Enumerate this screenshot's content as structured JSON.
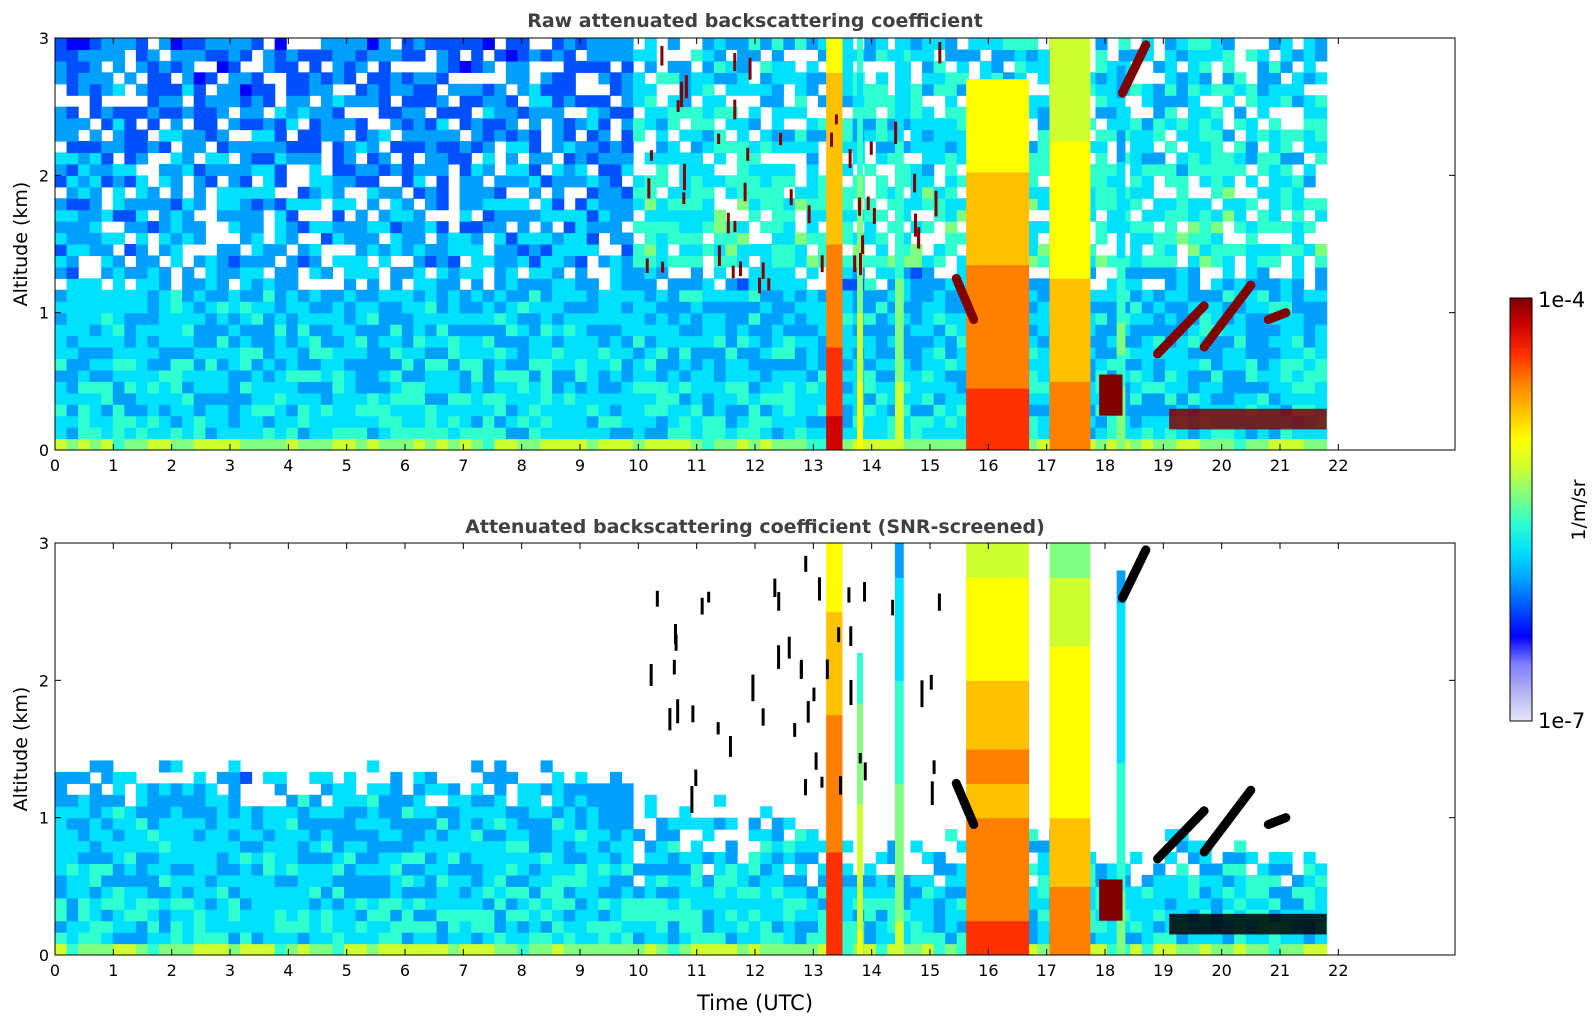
{
  "chart_data": [
    {
      "type": "heatmap",
      "title": "Raw attenuated backscattering coefficient",
      "xlabel": "",
      "ylabel": "Altitude (km)",
      "xlim": [
        0,
        24
      ],
      "ylim": [
        0,
        3
      ],
      "x_ticks": [
        "0",
        "1",
        "2",
        "3",
        "4",
        "5",
        "6",
        "7",
        "8",
        "9",
        "10",
        "11",
        "12",
        "13",
        "14",
        "15",
        "16",
        "17",
        "18",
        "19",
        "20",
        "21",
        "22"
      ],
      "y_ticks": [
        "0",
        "1",
        "2",
        "3"
      ],
      "data_end_hour": 21.8,
      "screened": false,
      "features": [
        {
          "kind": "column",
          "x0": 15.62,
          "x1": 16.7,
          "top": 2.7,
          "level": 0.85
        },
        {
          "kind": "column",
          "x0": 17.05,
          "x1": 17.75,
          "top": 3.0,
          "level": 0.8
        },
        {
          "kind": "column",
          "x0": 13.22,
          "x1": 13.5,
          "top": 3.0,
          "level": 0.9
        },
        {
          "kind": "column",
          "x0": 13.75,
          "x1": 13.85,
          "top": 3.0,
          "level": 0.65
        },
        {
          "kind": "column",
          "x0": 14.4,
          "x1": 14.55,
          "top": 3.0,
          "level": 0.6
        },
        {
          "kind": "column",
          "x0": 18.2,
          "x1": 18.35,
          "top": 2.8,
          "level": 0.55
        },
        {
          "kind": "patch",
          "x": 17.9,
          "y": 0.25,
          "w": 0.4,
          "h": 0.3,
          "level": 1.0
        },
        {
          "kind": "band",
          "x0": 19.1,
          "x1": 21.8,
          "y": 0.15,
          "h": 0.15,
          "level": 1.0
        },
        {
          "kind": "streak",
          "x0": 18.9,
          "y0": 0.7,
          "x1": 19.7,
          "y1": 1.05,
          "level": 1.0
        },
        {
          "kind": "streak",
          "x0": 19.7,
          "y0": 0.75,
          "x1": 20.5,
          "y1": 1.2,
          "level": 1.0
        },
        {
          "kind": "streak",
          "x0": 20.8,
          "y0": 0.95,
          "x1": 21.1,
          "y1": 1.0,
          "level": 1.0
        },
        {
          "kind": "streak",
          "x0": 18.3,
          "y0": 2.6,
          "x1": 18.7,
          "y1": 2.95,
          "level": 1.0
        },
        {
          "kind": "streak",
          "x0": 15.45,
          "y0": 1.25,
          "x1": 15.75,
          "y1": 0.95,
          "level": 1.0
        },
        {
          "kind": "dots",
          "x0": 10.0,
          "x1": 15.2,
          "y0": 1.2,
          "y1": 3.0,
          "count": 45,
          "level": 1.0
        }
      ]
    },
    {
      "type": "heatmap",
      "title": "Attenuated backscattering coefficient (SNR-screened)",
      "xlabel": "Time (UTC)",
      "ylabel": "Altitude (km)",
      "xlim": [
        0,
        24
      ],
      "ylim": [
        0,
        3
      ],
      "x_ticks": [
        "0",
        "1",
        "2",
        "3",
        "4",
        "5",
        "6",
        "7",
        "8",
        "9",
        "10",
        "11",
        "12",
        "13",
        "14",
        "15",
        "16",
        "17",
        "18",
        "19",
        "20",
        "21",
        "22"
      ],
      "y_ticks": [
        "0",
        "1",
        "2",
        "3"
      ],
      "data_end_hour": 21.8,
      "screened": true,
      "features": [
        {
          "kind": "column",
          "x0": 15.62,
          "x1": 16.7,
          "top": 3.0,
          "level": 0.85
        },
        {
          "kind": "column",
          "x0": 17.05,
          "x1": 17.75,
          "top": 3.0,
          "level": 0.8
        },
        {
          "kind": "column",
          "x0": 13.22,
          "x1": 13.5,
          "top": 3.0,
          "level": 0.9
        },
        {
          "kind": "column",
          "x0": 13.75,
          "x1": 13.85,
          "top": 2.2,
          "level": 0.65
        },
        {
          "kind": "column",
          "x0": 14.4,
          "x1": 14.55,
          "top": 3.0,
          "level": 0.6
        },
        {
          "kind": "column",
          "x0": 18.2,
          "x1": 18.35,
          "top": 2.8,
          "level": 0.55
        },
        {
          "kind": "patch",
          "x": 17.9,
          "y": 0.25,
          "w": 0.4,
          "h": 0.3,
          "level": 1.0
        },
        {
          "kind": "band",
          "x0": 19.1,
          "x1": 21.8,
          "y": 0.15,
          "h": 0.15,
          "level": 1.0
        },
        {
          "kind": "streak",
          "x0": 18.9,
          "y0": 0.7,
          "x1": 19.7,
          "y1": 1.05,
          "level": 1.0
        },
        {
          "kind": "streak",
          "x0": 19.7,
          "y0": 0.75,
          "x1": 20.5,
          "y1": 1.2,
          "level": 1.0
        },
        {
          "kind": "streak",
          "x0": 20.8,
          "y0": 0.95,
          "x1": 21.1,
          "y1": 1.0,
          "level": 1.0
        },
        {
          "kind": "streak",
          "x0": 18.3,
          "y0": 2.6,
          "x1": 18.7,
          "y1": 2.95,
          "level": 1.0
        },
        {
          "kind": "streak",
          "x0": 15.45,
          "y0": 1.25,
          "x1": 15.75,
          "y1": 0.95,
          "level": 1.0
        },
        {
          "kind": "dots",
          "x0": 10.0,
          "x1": 15.2,
          "y0": 1.2,
          "y1": 3.0,
          "count": 45,
          "level": 1.0
        }
      ]
    }
  ],
  "colorbar": {
    "max_label": "1e-4",
    "min_label": "1e-7",
    "unit_label": "1/m/sr",
    "colors": [
      "#e6e6fa",
      "#b4b4f0",
      "#8080ff",
      "#0000ff",
      "#0050ff",
      "#00a0ff",
      "#00e0ff",
      "#30ffd0",
      "#80ff80",
      "#d0ff30",
      "#ffff00",
      "#ffc000",
      "#ff8000",
      "#ff3000",
      "#d00000",
      "#800000"
    ]
  },
  "screened_peak_color": "#000000"
}
